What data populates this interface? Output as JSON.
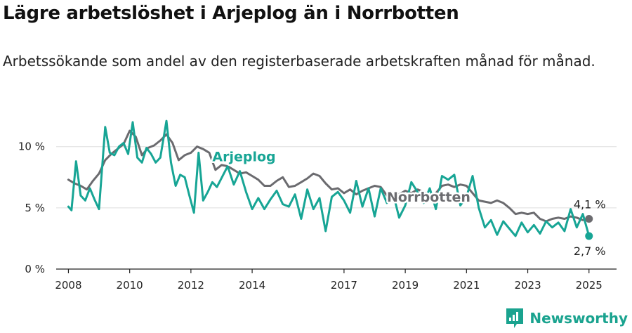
{
  "title": "Lägre arbetslöshet i Arjeplog än i Norrbotten",
  "subtitle": "Arbetssökande som andel av den registerbaserade arbetskraften månad för månad.",
  "brand": "Newsworthy",
  "colors": {
    "arjeplog": "#17a595",
    "norrbotten": "#6b6b6f",
    "grid": "#dddddd",
    "axis": "#222222"
  },
  "chart_data": {
    "type": "line",
    "xlim": [
      2007.6,
      2025.9
    ],
    "ylim": [
      0,
      10.5
    ],
    "x_ticks": [
      {
        "value": 2008,
        "label": "2008"
      },
      {
        "value": 2010,
        "label": "2010"
      },
      {
        "value": 2012,
        "label": "2012"
      },
      {
        "value": 2014,
        "label": "2014"
      },
      {
        "value": 2017,
        "label": "2017"
      },
      {
        "value": 2019,
        "label": "2019"
      },
      {
        "value": 2021,
        "label": "2021"
      },
      {
        "value": 2023,
        "label": "2023"
      },
      {
        "value": 2025,
        "label": "2025"
      }
    ],
    "y_ticks": [
      {
        "value": 0,
        "label": "0 %"
      },
      {
        "value": 5,
        "label": "5 %"
      },
      {
        "value": 10,
        "label": "10 %"
      }
    ],
    "series": [
      {
        "name": "Norrbotten",
        "color": "#6b6b6f",
        "end_label": "4,1 %",
        "label_at": [
          2018.4,
          5.5
        ],
        "points": [
          [
            2008.0,
            7.3
          ],
          [
            2008.2,
            7.0
          ],
          [
            2008.4,
            6.8
          ],
          [
            2008.6,
            6.5
          ],
          [
            2008.8,
            7.2
          ],
          [
            2009.0,
            7.8
          ],
          [
            2009.2,
            8.9
          ],
          [
            2009.4,
            9.4
          ],
          [
            2009.6,
            9.8
          ],
          [
            2009.8,
            10.2
          ],
          [
            2010.0,
            11.3
          ],
          [
            2010.2,
            10.8
          ],
          [
            2010.4,
            9.3
          ],
          [
            2010.6,
            9.9
          ],
          [
            2010.8,
            10.1
          ],
          [
            2011.0,
            10.5
          ],
          [
            2011.2,
            11.0
          ],
          [
            2011.4,
            10.3
          ],
          [
            2011.6,
            8.9
          ],
          [
            2011.8,
            9.3
          ],
          [
            2012.0,
            9.5
          ],
          [
            2012.2,
            10.0
          ],
          [
            2012.4,
            9.8
          ],
          [
            2012.6,
            9.5
          ],
          [
            2012.8,
            8.1
          ],
          [
            2013.0,
            8.5
          ],
          [
            2013.2,
            8.4
          ],
          [
            2013.4,
            8.1
          ],
          [
            2013.6,
            7.8
          ],
          [
            2013.8,
            7.9
          ],
          [
            2014.0,
            7.6
          ],
          [
            2014.2,
            7.3
          ],
          [
            2014.4,
            6.8
          ],
          [
            2014.6,
            6.8
          ],
          [
            2014.8,
            7.2
          ],
          [
            2015.0,
            7.5
          ],
          [
            2015.2,
            6.7
          ],
          [
            2015.4,
            6.8
          ],
          [
            2015.6,
            7.1
          ],
          [
            2015.8,
            7.4
          ],
          [
            2016.0,
            7.8
          ],
          [
            2016.2,
            7.6
          ],
          [
            2016.4,
            7.0
          ],
          [
            2016.6,
            6.5
          ],
          [
            2016.8,
            6.6
          ],
          [
            2017.0,
            6.2
          ],
          [
            2017.2,
            6.5
          ],
          [
            2017.4,
            6.1
          ],
          [
            2017.6,
            6.4
          ],
          [
            2017.8,
            6.6
          ],
          [
            2018.0,
            6.8
          ],
          [
            2018.2,
            6.7
          ],
          [
            2018.4,
            6.0
          ],
          [
            2018.6,
            6.2
          ],
          [
            2018.8,
            6.1
          ],
          [
            2019.0,
            6.4
          ],
          [
            2019.2,
            6.2
          ],
          [
            2019.4,
            6.5
          ],
          [
            2019.6,
            6.3
          ],
          [
            2019.8,
            6.0
          ],
          [
            2020.0,
            6.2
          ],
          [
            2020.2,
            6.8
          ],
          [
            2020.4,
            6.9
          ],
          [
            2020.6,
            6.7
          ],
          [
            2020.8,
            6.9
          ],
          [
            2021.0,
            6.8
          ],
          [
            2021.2,
            6.2
          ],
          [
            2021.4,
            5.6
          ],
          [
            2021.6,
            5.5
          ],
          [
            2021.8,
            5.4
          ],
          [
            2022.0,
            5.6
          ],
          [
            2022.2,
            5.4
          ],
          [
            2022.4,
            5.0
          ],
          [
            2022.6,
            4.5
          ],
          [
            2022.8,
            4.6
          ],
          [
            2023.0,
            4.5
          ],
          [
            2023.2,
            4.6
          ],
          [
            2023.4,
            4.1
          ],
          [
            2023.6,
            3.9
          ],
          [
            2023.8,
            4.1
          ],
          [
            2024.0,
            4.2
          ],
          [
            2024.2,
            4.1
          ],
          [
            2024.4,
            4.3
          ],
          [
            2024.6,
            4.2
          ],
          [
            2024.8,
            4.0
          ],
          [
            2025.0,
            4.1
          ]
        ]
      },
      {
        "name": "Arjeplog",
        "color": "#17a595",
        "end_label": "2,7 %",
        "label_at": [
          2012.7,
          8.8
        ],
        "points": [
          [
            2008.0,
            5.1
          ],
          [
            2008.1,
            4.8
          ],
          [
            2008.25,
            8.8
          ],
          [
            2008.4,
            6.0
          ],
          [
            2008.55,
            5.6
          ],
          [
            2008.7,
            6.6
          ],
          [
            2008.85,
            5.7
          ],
          [
            2009.0,
            4.9
          ],
          [
            2009.2,
            11.6
          ],
          [
            2009.35,
            9.5
          ],
          [
            2009.5,
            9.3
          ],
          [
            2009.65,
            10.0
          ],
          [
            2009.8,
            10.3
          ],
          [
            2009.95,
            9.4
          ],
          [
            2010.1,
            12.0
          ],
          [
            2010.25,
            9.1
          ],
          [
            2010.4,
            8.7
          ],
          [
            2010.55,
            9.9
          ],
          [
            2010.7,
            9.4
          ],
          [
            2010.85,
            8.7
          ],
          [
            2011.0,
            9.1
          ],
          [
            2011.2,
            12.1
          ],
          [
            2011.35,
            8.7
          ],
          [
            2011.5,
            6.8
          ],
          [
            2011.65,
            7.7
          ],
          [
            2011.8,
            7.5
          ],
          [
            2011.95,
            6.0
          ],
          [
            2012.1,
            4.6
          ],
          [
            2012.25,
            9.5
          ],
          [
            2012.4,
            5.6
          ],
          [
            2012.55,
            6.3
          ],
          [
            2012.7,
            7.1
          ],
          [
            2012.85,
            6.7
          ],
          [
            2013.2,
            8.4
          ],
          [
            2013.4,
            6.9
          ],
          [
            2013.6,
            8.0
          ],
          [
            2013.8,
            6.3
          ],
          [
            2014.0,
            4.9
          ],
          [
            2014.2,
            5.8
          ],
          [
            2014.4,
            4.9
          ],
          [
            2014.6,
            5.7
          ],
          [
            2014.8,
            6.4
          ],
          [
            2015.0,
            5.3
          ],
          [
            2015.2,
            5.1
          ],
          [
            2015.4,
            6.1
          ],
          [
            2015.6,
            4.1
          ],
          [
            2015.8,
            6.5
          ],
          [
            2016.0,
            4.9
          ],
          [
            2016.2,
            5.8
          ],
          [
            2016.4,
            3.1
          ],
          [
            2016.6,
            5.9
          ],
          [
            2016.8,
            6.3
          ],
          [
            2017.0,
            5.6
          ],
          [
            2017.2,
            4.6
          ],
          [
            2017.4,
            7.2
          ],
          [
            2017.6,
            5.1
          ],
          [
            2017.8,
            6.6
          ],
          [
            2018.0,
            4.3
          ],
          [
            2018.2,
            6.6
          ],
          [
            2018.4,
            5.4
          ],
          [
            2018.6,
            6.2
          ],
          [
            2018.8,
            4.2
          ],
          [
            2019.0,
            5.2
          ],
          [
            2019.2,
            7.1
          ],
          [
            2019.4,
            6.3
          ],
          [
            2019.6,
            5.4
          ],
          [
            2019.8,
            6.6
          ],
          [
            2020.0,
            4.9
          ],
          [
            2020.2,
            7.6
          ],
          [
            2020.4,
            7.3
          ],
          [
            2020.6,
            7.7
          ],
          [
            2020.8,
            5.2
          ],
          [
            2021.0,
            5.9
          ],
          [
            2021.2,
            7.6
          ],
          [
            2021.4,
            5.0
          ],
          [
            2021.6,
            3.4
          ],
          [
            2021.8,
            4.0
          ],
          [
            2022.0,
            2.8
          ],
          [
            2022.2,
            3.9
          ],
          [
            2022.4,
            3.3
          ],
          [
            2022.6,
            2.7
          ],
          [
            2022.8,
            3.8
          ],
          [
            2023.0,
            3.0
          ],
          [
            2023.2,
            3.6
          ],
          [
            2023.4,
            2.9
          ],
          [
            2023.6,
            3.9
          ],
          [
            2023.8,
            3.4
          ],
          [
            2024.0,
            3.8
          ],
          [
            2024.2,
            3.1
          ],
          [
            2024.4,
            4.9
          ],
          [
            2024.6,
            3.4
          ],
          [
            2024.8,
            4.5
          ],
          [
            2025.0,
            2.7
          ]
        ]
      }
    ]
  }
}
